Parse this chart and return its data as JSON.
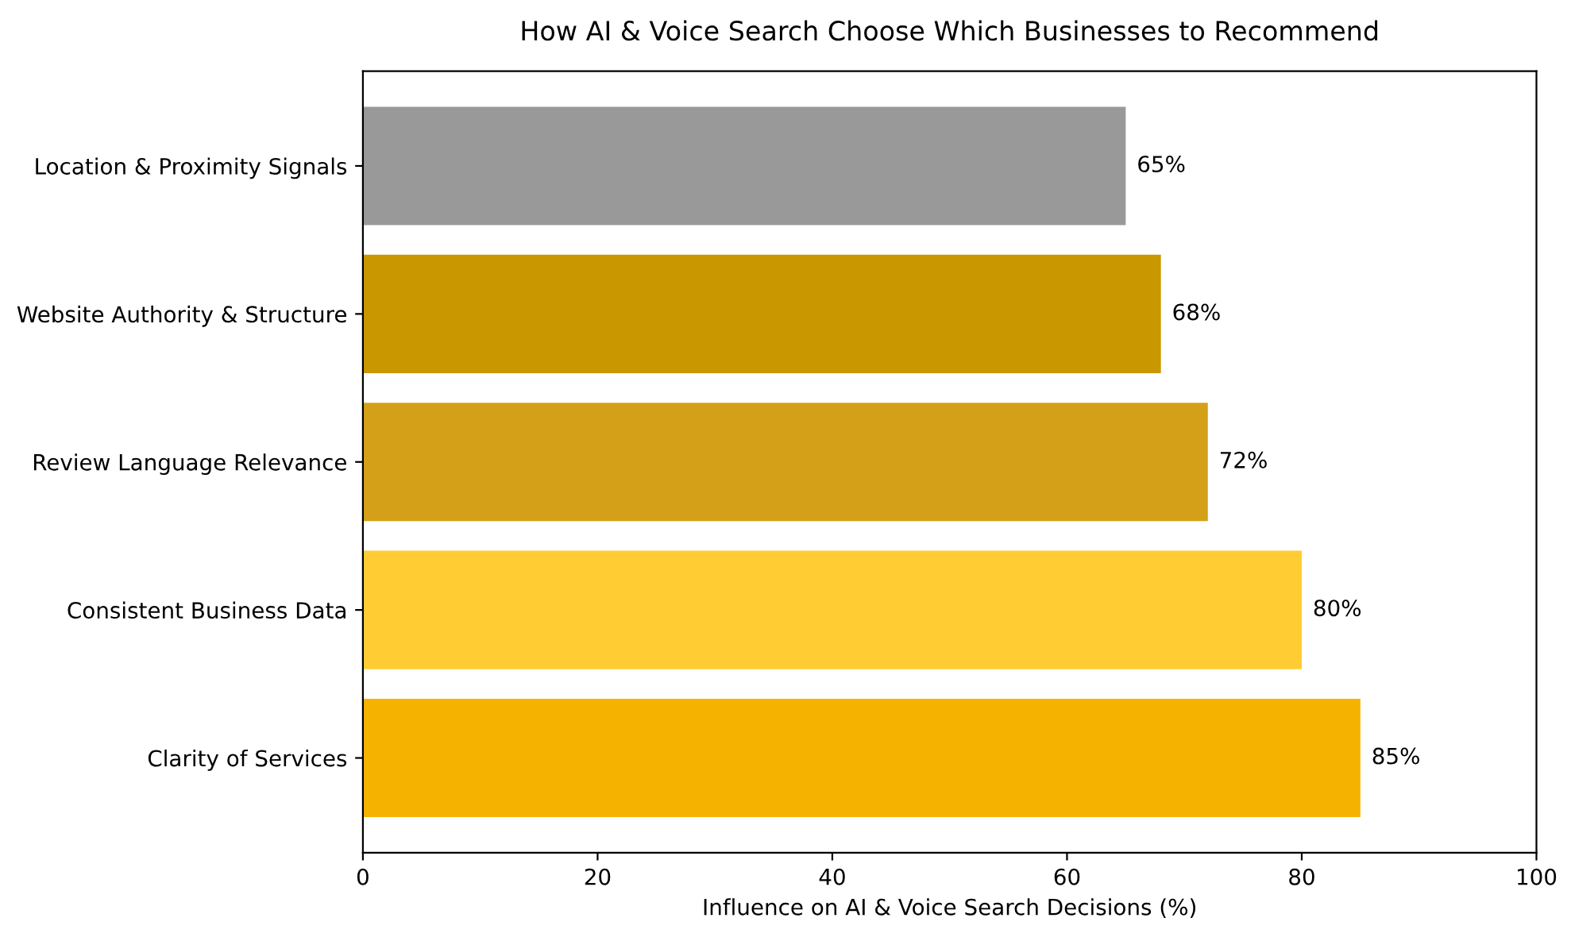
{
  "chart_data": {
    "type": "bar",
    "orientation": "horizontal",
    "title": "How AI & Voice Search Choose Which Businesses to Recommend",
    "xlabel": "Influence on AI & Voice Search Decisions (%)",
    "categories": [
      "Location & Proximity Signals",
      "Website Authority & Structure",
      "Review Language Relevance",
      "Consistent Business Data",
      "Clarity of Services"
    ],
    "values": [
      65,
      68,
      72,
      80,
      85
    ],
    "colors": [
      "#999999",
      "#c99700",
      "#d4a017",
      "#ffcc33",
      "#f5b300"
    ],
    "value_labels": [
      "65%",
      "68%",
      "72%",
      "80%",
      "85%"
    ],
    "xlim": [
      0,
      100
    ],
    "xticks": [
      0,
      20,
      40,
      60,
      80,
      100
    ],
    "grid": false
  }
}
